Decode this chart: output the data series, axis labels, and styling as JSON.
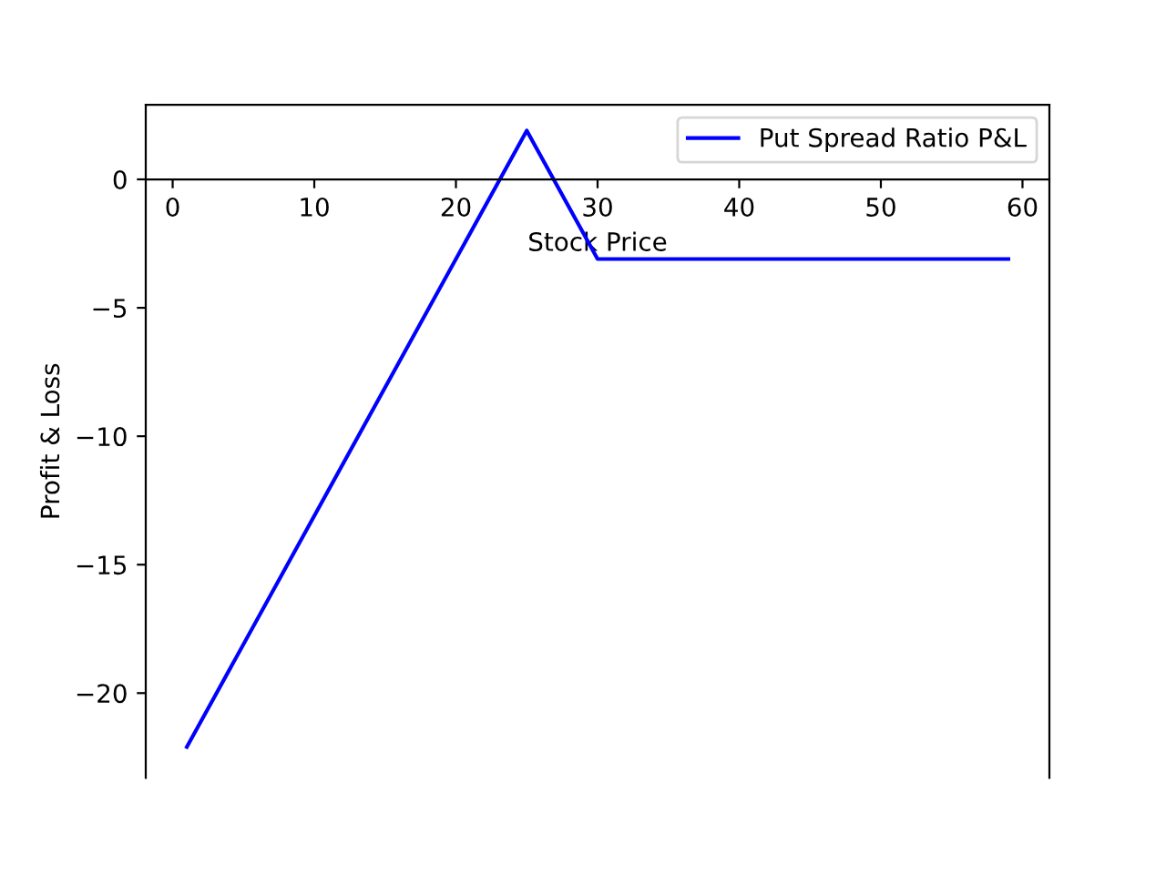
{
  "chart_data": {
    "type": "line",
    "xlabel": "Stock Price",
    "ylabel": "Profit & Loss",
    "series": [
      {
        "name": "Put Spread Ratio P&L",
        "color": "#0000ff",
        "x": [
          1,
          25,
          30,
          59
        ],
        "values": [
          -22.1,
          1.9,
          -3.1,
          -3.1
        ]
      }
    ],
    "xlim": [
      -1.9,
      61.9
    ],
    "ylim": [
      -23.3,
      2.9
    ],
    "xticks": [
      0,
      10,
      20,
      30,
      40,
      50,
      60
    ],
    "yticks": [
      -20,
      -15,
      -10,
      -5,
      0
    ],
    "legend": "top right",
    "grid": false,
    "marker": "none",
    "line_style": "solid"
  }
}
